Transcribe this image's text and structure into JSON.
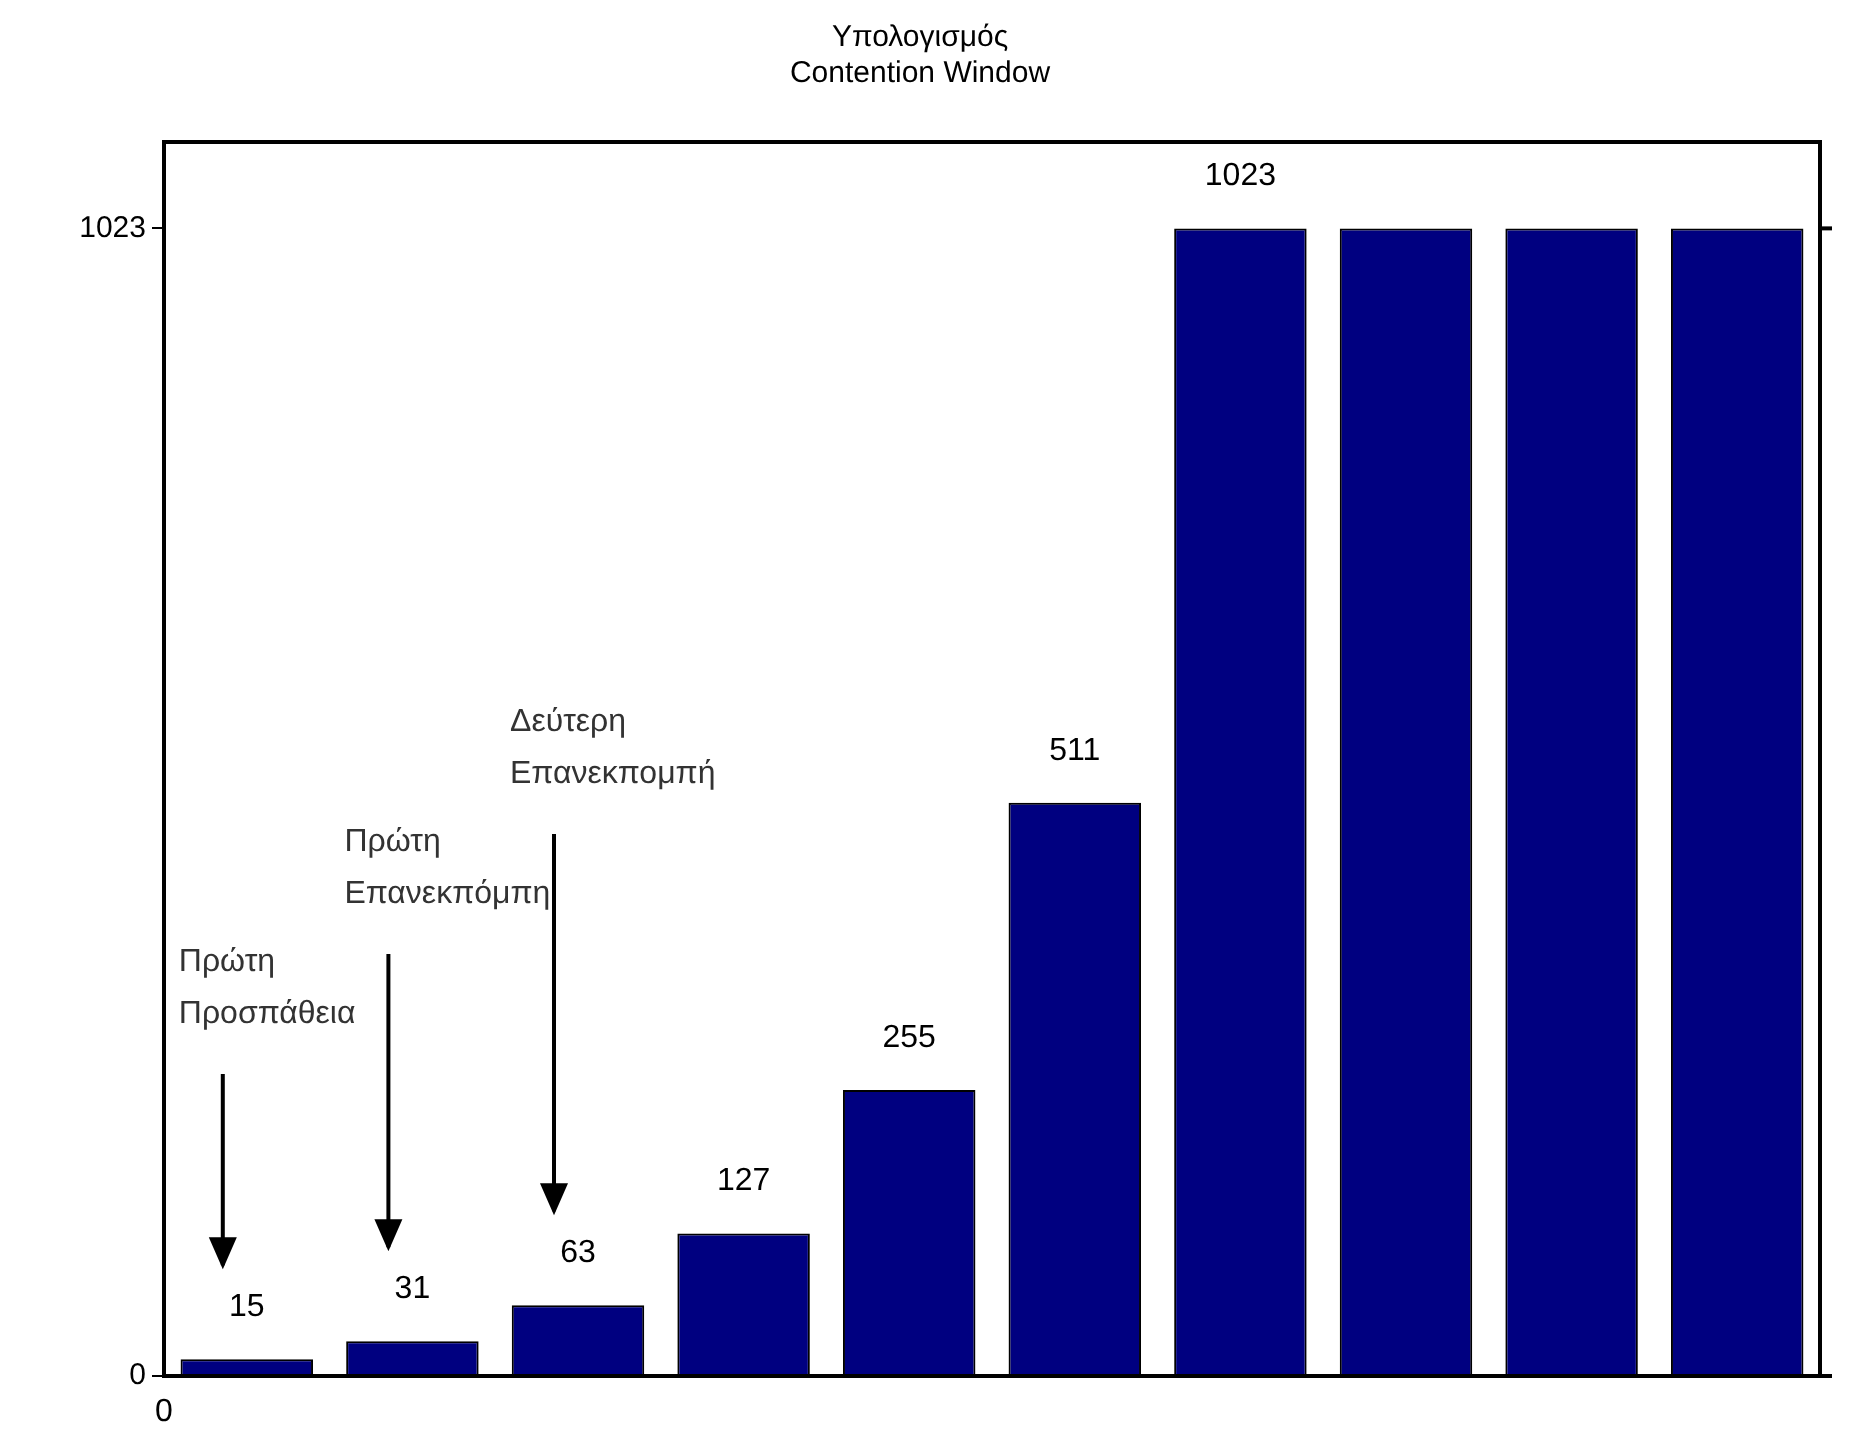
{
  "chart_data": {
    "type": "bar",
    "title": "Υπολογισμός\nContention Window",
    "categories": [
      null,
      null,
      null,
      null,
      null,
      null,
      null,
      null,
      null,
      null
    ],
    "values": [
      15,
      31,
      63,
      127,
      255,
      511,
      1023,
      1023,
      1023,
      1023
    ],
    "color": "#000080",
    "value_labels": [
      "15",
      "31",
      "63",
      "127",
      "255",
      "511",
      "1023",
      null,
      null,
      null
    ],
    "ylim": [
      0,
      1100
    ],
    "yticks": [
      0,
      1023
    ],
    "grid": false,
    "legend": false,
    "annotations": [
      "Πρώτη\nΠροσπάθεια",
      "Πρώτη\nΕπανεκπόμπη",
      "Δεύτερη\nΕπανεκπομπή",
      "0"
    ]
  }
}
